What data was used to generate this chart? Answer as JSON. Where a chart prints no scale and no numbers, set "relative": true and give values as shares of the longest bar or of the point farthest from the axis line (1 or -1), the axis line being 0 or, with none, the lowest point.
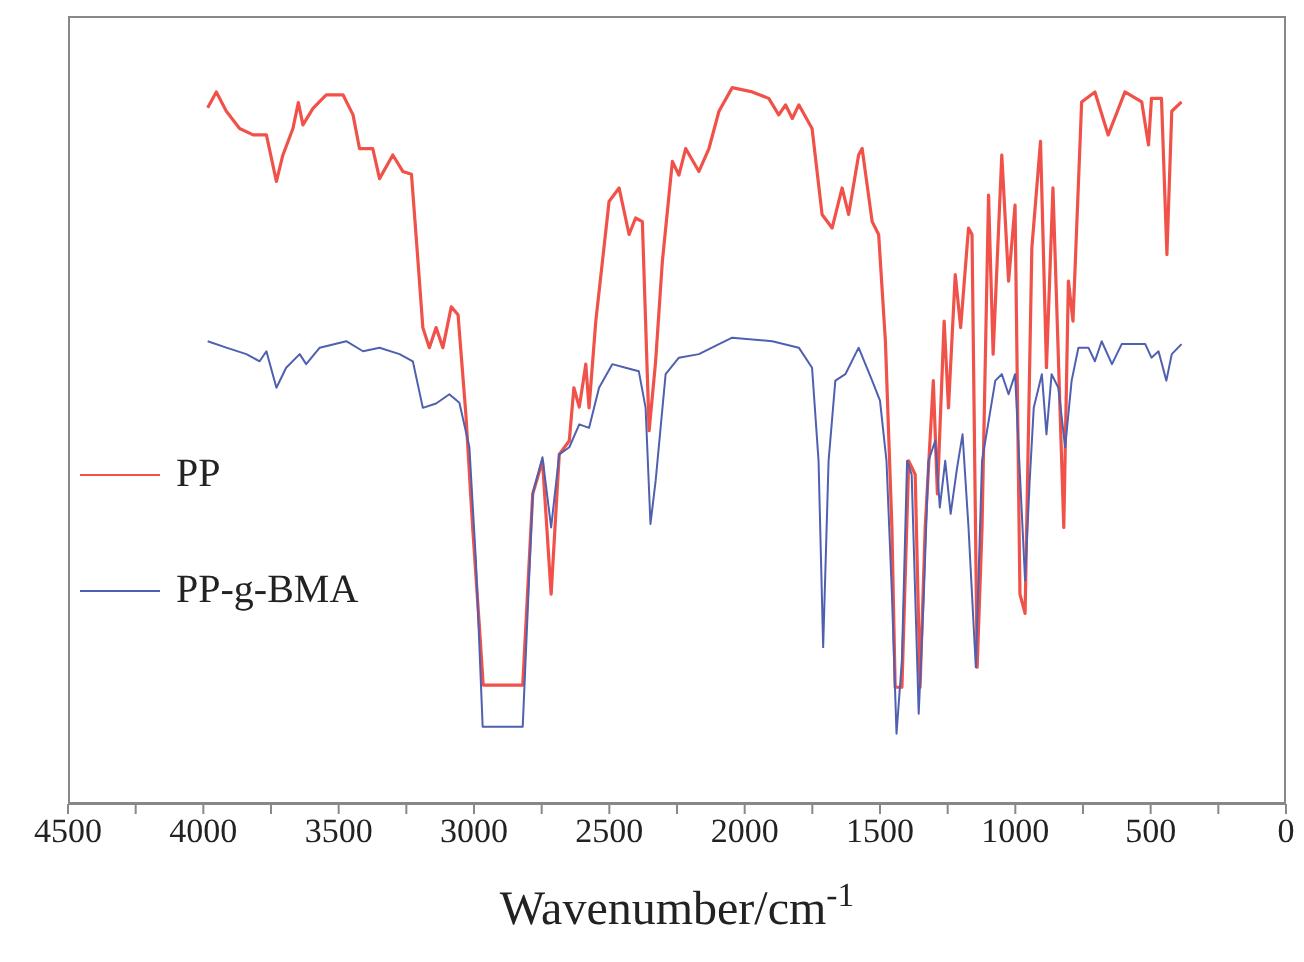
{
  "chart_data": {
    "type": "line",
    "relative": true,
    "xlabel": "Wavenumber/cm$^{-1}$",
    "xlim": [
      4500,
      0
    ],
    "xticks": [
      4500,
      {
        "value": 4250,
        "label": null
      },
      4000,
      {
        "value": 3750,
        "label": null
      },
      3500,
      {
        "value": 3250,
        "label": null
      },
      3000,
      {
        "value": 2750,
        "label": null
      },
      2500,
      {
        "value": 2250,
        "label": null
      },
      2000,
      {
        "value": 1750,
        "label": null
      },
      1500,
      {
        "value": 1250,
        "label": null
      },
      1000,
      {
        "value": 750,
        "label": null
      },
      500,
      {
        "value": 250,
        "label": null
      },
      0
    ],
    "legend": "left",
    "marker": "none",
    "line_style": "solid",
    "series": [
      {
        "name": "PP",
        "color": "#f0524a",
        "x": [
          3984,
          3952,
          3915,
          3866,
          3816,
          3767,
          3730,
          3706,
          3669,
          3649,
          3632,
          3595,
          3546,
          3484,
          3447,
          3423,
          3374,
          3349,
          3300,
          3263,
          3231,
          3207,
          3189,
          3165,
          3140,
          3115,
          3084,
          3059,
          3030,
          3005,
          2980,
          2966,
          2820,
          2783,
          2747,
          2715,
          2685,
          2648,
          2631,
          2611,
          2587,
          2575,
          2550,
          2501,
          2464,
          2427,
          2403,
          2378,
          2353,
          2329,
          2304,
          2267,
          2243,
          2218,
          2169,
          2132,
          2095,
          2046,
          1972,
          1911,
          1874,
          1849,
          1824,
          1800,
          1751,
          1714,
          1677,
          1640,
          1616,
          1579,
          1566,
          1529,
          1505,
          1480,
          1456,
          1444,
          1419,
          1394,
          1370,
          1352,
          1333,
          1303,
          1288,
          1263,
          1247,
          1222,
          1202,
          1173,
          1160,
          1141,
          1123,
          1099,
          1082,
          1050,
          1025,
          1001,
          983,
          964,
          939,
          907,
          885,
          861,
          821,
          804,
          787,
          755,
          706,
          657,
          595,
          533,
          508,
          497,
          460,
          440,
          422,
          386
        ],
        "values": [
          0.972,
          0.994,
          0.967,
          0.943,
          0.934,
          0.934,
          0.869,
          0.906,
          0.943,
          0.979,
          0.948,
          0.971,
          0.99,
          0.99,
          0.962,
          0.915,
          0.915,
          0.873,
          0.906,
          0.883,
          0.879,
          0.758,
          0.665,
          0.637,
          0.665,
          0.637,
          0.694,
          0.683,
          0.544,
          0.386,
          0.247,
          0.166,
          0.166,
          0.433,
          0.479,
          0.293,
          0.488,
          0.507,
          0.581,
          0.554,
          0.614,
          0.553,
          0.674,
          0.841,
          0.86,
          0.795,
          0.818,
          0.813,
          0.521,
          0.618,
          0.758,
          0.897,
          0.878,
          0.915,
          0.883,
          0.915,
          0.967,
          1.0,
          0.994,
          0.985,
          0.962,
          0.976,
          0.957,
          0.976,
          0.943,
          0.823,
          0.804,
          0.86,
          0.823,
          0.906,
          0.915,
          0.813,
          0.795,
          0.646,
          0.386,
          0.163,
          0.163,
          0.479,
          0.46,
          0.163,
          0.386,
          0.591,
          0.433,
          0.674,
          0.553,
          0.739,
          0.665,
          0.804,
          0.795,
          0.191,
          0.386,
          0.85,
          0.628,
          0.906,
          0.73,
          0.836,
          0.293,
          0.266,
          0.776,
          0.925,
          0.609,
          0.86,
          0.386,
          0.73,
          0.674,
          0.98,
          0.994,
          0.934,
          0.994,
          0.98,
          0.92,
          0.985,
          0.985,
          0.767,
          0.967,
          0.98
        ]
      },
      {
        "name": "PP-g-BMA",
        "color": "#5060b0",
        "x": [
          3984,
          3915,
          3841,
          3792,
          3767,
          3730,
          3694,
          3644,
          3620,
          3570,
          3472,
          3410,
          3349,
          3275,
          3226,
          3189,
          3140,
          3091,
          3054,
          3017,
          2993,
          2968,
          2820,
          2783,
          2747,
          2715,
          2685,
          2648,
          2611,
          2575,
          2538,
          2489,
          2440,
          2391,
          2366,
          2348,
          2329,
          2292,
          2243,
          2169,
          2095,
          2046,
          1898,
          1800,
          1751,
          1727,
          1710,
          1690,
          1665,
          1628,
          1591,
          1579,
          1529,
          1500,
          1476,
          1456,
          1439,
          1419,
          1400,
          1383,
          1357,
          1338,
          1321,
          1296,
          1279,
          1259,
          1239,
          1215,
          1195,
          1173,
          1146,
          1123,
          1074,
          1050,
          1025,
          1001,
          983,
          964,
          947,
          932,
          902,
          885,
          866,
          841,
          816,
          792,
          767,
          730,
          706,
          681,
          643,
          607,
          520,
          497,
          471,
          442,
          422,
          386
        ],
        "values": [
          0.646,
          0.637,
          0.628,
          0.618,
          0.632,
          0.581,
          0.609,
          0.628,
          0.614,
          0.637,
          0.646,
          0.632,
          0.637,
          0.628,
          0.618,
          0.553,
          0.559,
          0.572,
          0.56,
          0.498,
          0.34,
          0.108,
          0.108,
          0.433,
          0.484,
          0.386,
          0.488,
          0.498,
          0.53,
          0.525,
          0.581,
          0.614,
          0.609,
          0.604,
          0.553,
          0.391,
          0.451,
          0.6,
          0.623,
          0.628,
          0.642,
          0.651,
          0.646,
          0.637,
          0.609,
          0.479,
          0.219,
          0.479,
          0.591,
          0.6,
          0.628,
          0.637,
          0.591,
          0.563,
          0.479,
          0.293,
          0.098,
          0.201,
          0.479,
          0.46,
          0.126,
          0.293,
          0.479,
          0.507,
          0.414,
          0.479,
          0.405,
          0.47,
          0.516,
          0.386,
          0.191,
          0.479,
          0.591,
          0.6,
          0.572,
          0.6,
          0.46,
          0.312,
          0.451,
          0.553,
          0.6,
          0.516,
          0.6,
          0.581,
          0.498,
          0.591,
          0.637,
          0.637,
          0.618,
          0.646,
          0.614,
          0.642,
          0.642,
          0.623,
          0.632,
          0.591,
          0.628,
          0.642
        ]
      }
    ]
  }
}
